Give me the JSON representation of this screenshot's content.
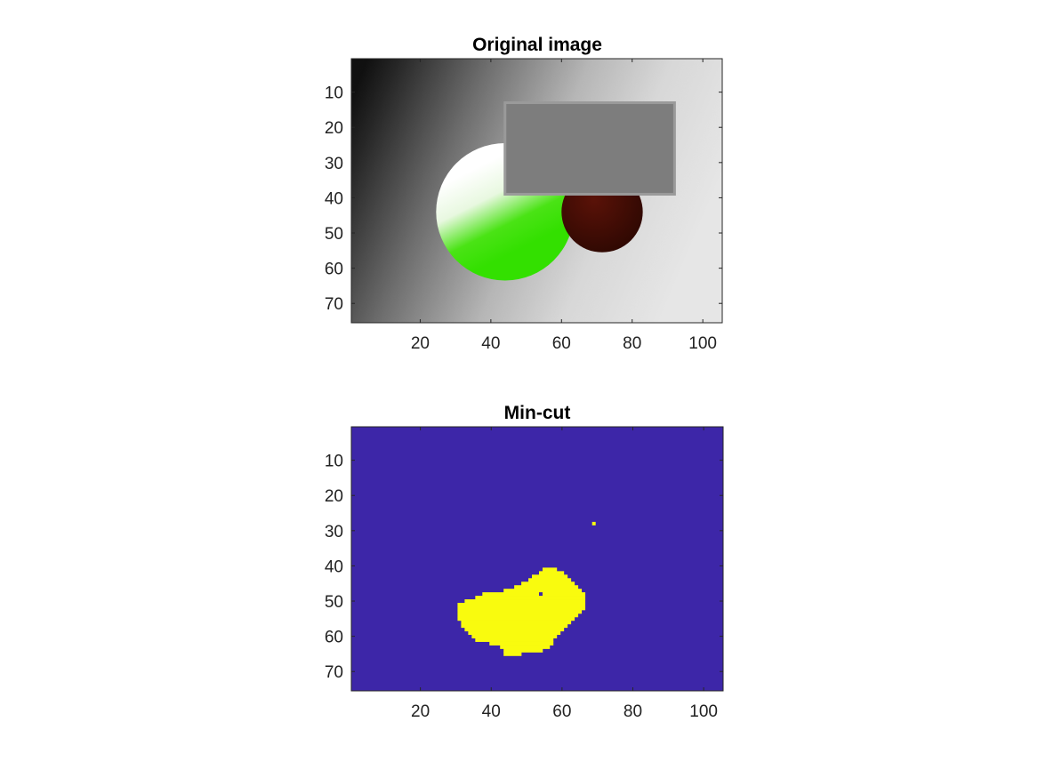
{
  "chart_data": [
    {
      "type": "heatmap",
      "title": "Original image",
      "xlabel": "",
      "ylabel": "",
      "xlim": [
        0.5,
        105.5
      ],
      "ylim": [
        0.5,
        75.5
      ],
      "y_reversed": true,
      "x_ticks": [
        20,
        40,
        60,
        80,
        100
      ],
      "y_ticks": [
        10,
        20,
        30,
        40,
        50,
        60,
        70
      ],
      "grid": false,
      "image": {
        "background": "horizontal grayscale gradient, black at left to light gray/white at right, with noise",
        "shapes": [
          {
            "kind": "disk",
            "label": "large circle",
            "center": [
              44,
              44
            ],
            "radius": 19.5,
            "colors": [
              "#ffffff",
              "#33e000"
            ],
            "fill": "white at top fading to green at bottom"
          },
          {
            "kind": "disk",
            "label": "small circle",
            "center": [
              71.5,
              44
            ],
            "radius": 11.5,
            "colors": [
              "#5a1208",
              "#2e0802"
            ]
          },
          {
            "kind": "rectangle",
            "x_range": [
              44,
              92
            ],
            "y_range": [
              13,
              39
            ],
            "color": "#7d7d7d"
          }
        ]
      }
    },
    {
      "type": "heatmap",
      "title": "Min-cut",
      "xlabel": "",
      "ylabel": "",
      "xlim": [
        0.5,
        105.5
      ],
      "ylim": [
        0.5,
        75.5
      ],
      "y_reversed": true,
      "x_ticks": [
        20,
        40,
        60,
        80,
        100
      ],
      "y_ticks": [
        10,
        20,
        30,
        40,
        50,
        60,
        70
      ],
      "grid": false,
      "colors": {
        "background": "#3d26a8",
        "foreground": "#f9fb0e"
      },
      "foreground_blob": [
        [
          41,
          55,
          58
        ],
        [
          42,
          54,
          60
        ],
        [
          43,
          52,
          61
        ],
        [
          44,
          51,
          62
        ],
        [
          45,
          49,
          63
        ],
        [
          46,
          47,
          64
        ],
        [
          47,
          44,
          65
        ],
        [
          48,
          38,
          66
        ],
        [
          49,
          36,
          66
        ],
        [
          50,
          33,
          66
        ],
        [
          51,
          31,
          66
        ],
        [
          52,
          31,
          66
        ],
        [
          53,
          31,
          65
        ],
        [
          54,
          31,
          64
        ],
        [
          55,
          31,
          63
        ],
        [
          56,
          32,
          62
        ],
        [
          57,
          32,
          61
        ],
        [
          58,
          33,
          60
        ],
        [
          59,
          34,
          59
        ],
        [
          60,
          35,
          58
        ],
        [
          61,
          36,
          57
        ],
        [
          62,
          40,
          57
        ],
        [
          63,
          43,
          56
        ],
        [
          64,
          44,
          54
        ],
        [
          65,
          44,
          48
        ]
      ],
      "isolated_foreground_pixels": [
        [
          69,
          28
        ]
      ],
      "hole_pixels": [
        [
          54,
          48
        ]
      ]
    }
  ]
}
